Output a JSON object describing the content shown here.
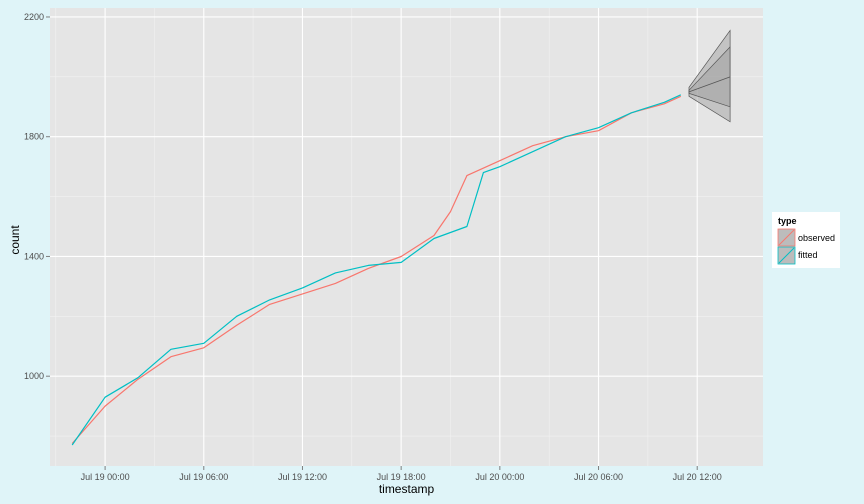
{
  "chart_data": {
    "type": "line",
    "xlabel": "timestamp",
    "ylabel": "count",
    "x_ticks": [
      "Jul 19 00:00",
      "Jul 19 06:00",
      "Jul 19 12:00",
      "Jul 19 18:00",
      "Jul 20 00:00",
      "Jul 20 06:00",
      "Jul 20 12:00"
    ],
    "y_ticks": [
      1000,
      1400,
      1800,
      2200
    ],
    "ylim": [
      700,
      2230
    ],
    "xlim": [
      "Jul 18 20:39",
      "Jul 20 16:00"
    ],
    "grid": true,
    "legend": {
      "title": "type",
      "position": "right",
      "entries": [
        "observed",
        "fitted"
      ]
    },
    "series": [
      {
        "name": "observed",
        "color": "#F8766D",
        "x": [
          "Jul 18 22:00",
          "Jul 19 00:00",
          "Jul 19 02:00",
          "Jul 19 04:00",
          "Jul 19 06:00",
          "Jul 19 08:00",
          "Jul 19 10:00",
          "Jul 19 12:00",
          "Jul 19 14:00",
          "Jul 19 16:00",
          "Jul 19 18:00",
          "Jul 19 20:00",
          "Jul 19 21:00",
          "Jul 19 22:00",
          "Jul 20 00:00",
          "Jul 20 02:00",
          "Jul 20 04:00",
          "Jul 20 06:00",
          "Jul 20 08:00",
          "Jul 20 10:00",
          "Jul 20 11:00"
        ],
        "y": [
          775,
          900,
          990,
          1065,
          1095,
          1170,
          1240,
          1275,
          1310,
          1360,
          1400,
          1470,
          1550,
          1670,
          1720,
          1770,
          1800,
          1820,
          1880,
          1910,
          1935
        ]
      },
      {
        "name": "fitted",
        "color": "#00BFC4",
        "x": [
          "Jul 18 22:00",
          "Jul 19 00:00",
          "Jul 19 02:00",
          "Jul 19 04:00",
          "Jul 19 06:00",
          "Jul 19 08:00",
          "Jul 19 10:00",
          "Jul 19 12:00",
          "Jul 19 14:00",
          "Jul 19 16:00",
          "Jul 19 18:00",
          "Jul 19 20:00",
          "Jul 19 22:00",
          "Jul 19 23:00",
          "Jul 20 00:00",
          "Jul 20 02:00",
          "Jul 20 04:00",
          "Jul 20 06:00",
          "Jul 20 08:00",
          "Jul 20 10:00",
          "Jul 20 11:00"
        ],
        "y": [
          770,
          930,
          995,
          1090,
          1110,
          1200,
          1255,
          1295,
          1345,
          1370,
          1380,
          1460,
          1500,
          1680,
          1700,
          1750,
          1800,
          1830,
          1880,
          1915,
          1940
        ]
      }
    ],
    "forecast": {
      "color": "#999999",
      "x": [
        "Jul 20 11:30",
        "Jul 20 14:00"
      ],
      "mean": [
        1950,
        2000
      ],
      "lower_80": [
        1945,
        1900
      ],
      "upper_80": [
        1955,
        2100
      ],
      "lower_95": [
        1935,
        1850
      ],
      "upper_95": [
        1965,
        2155
      ]
    }
  }
}
